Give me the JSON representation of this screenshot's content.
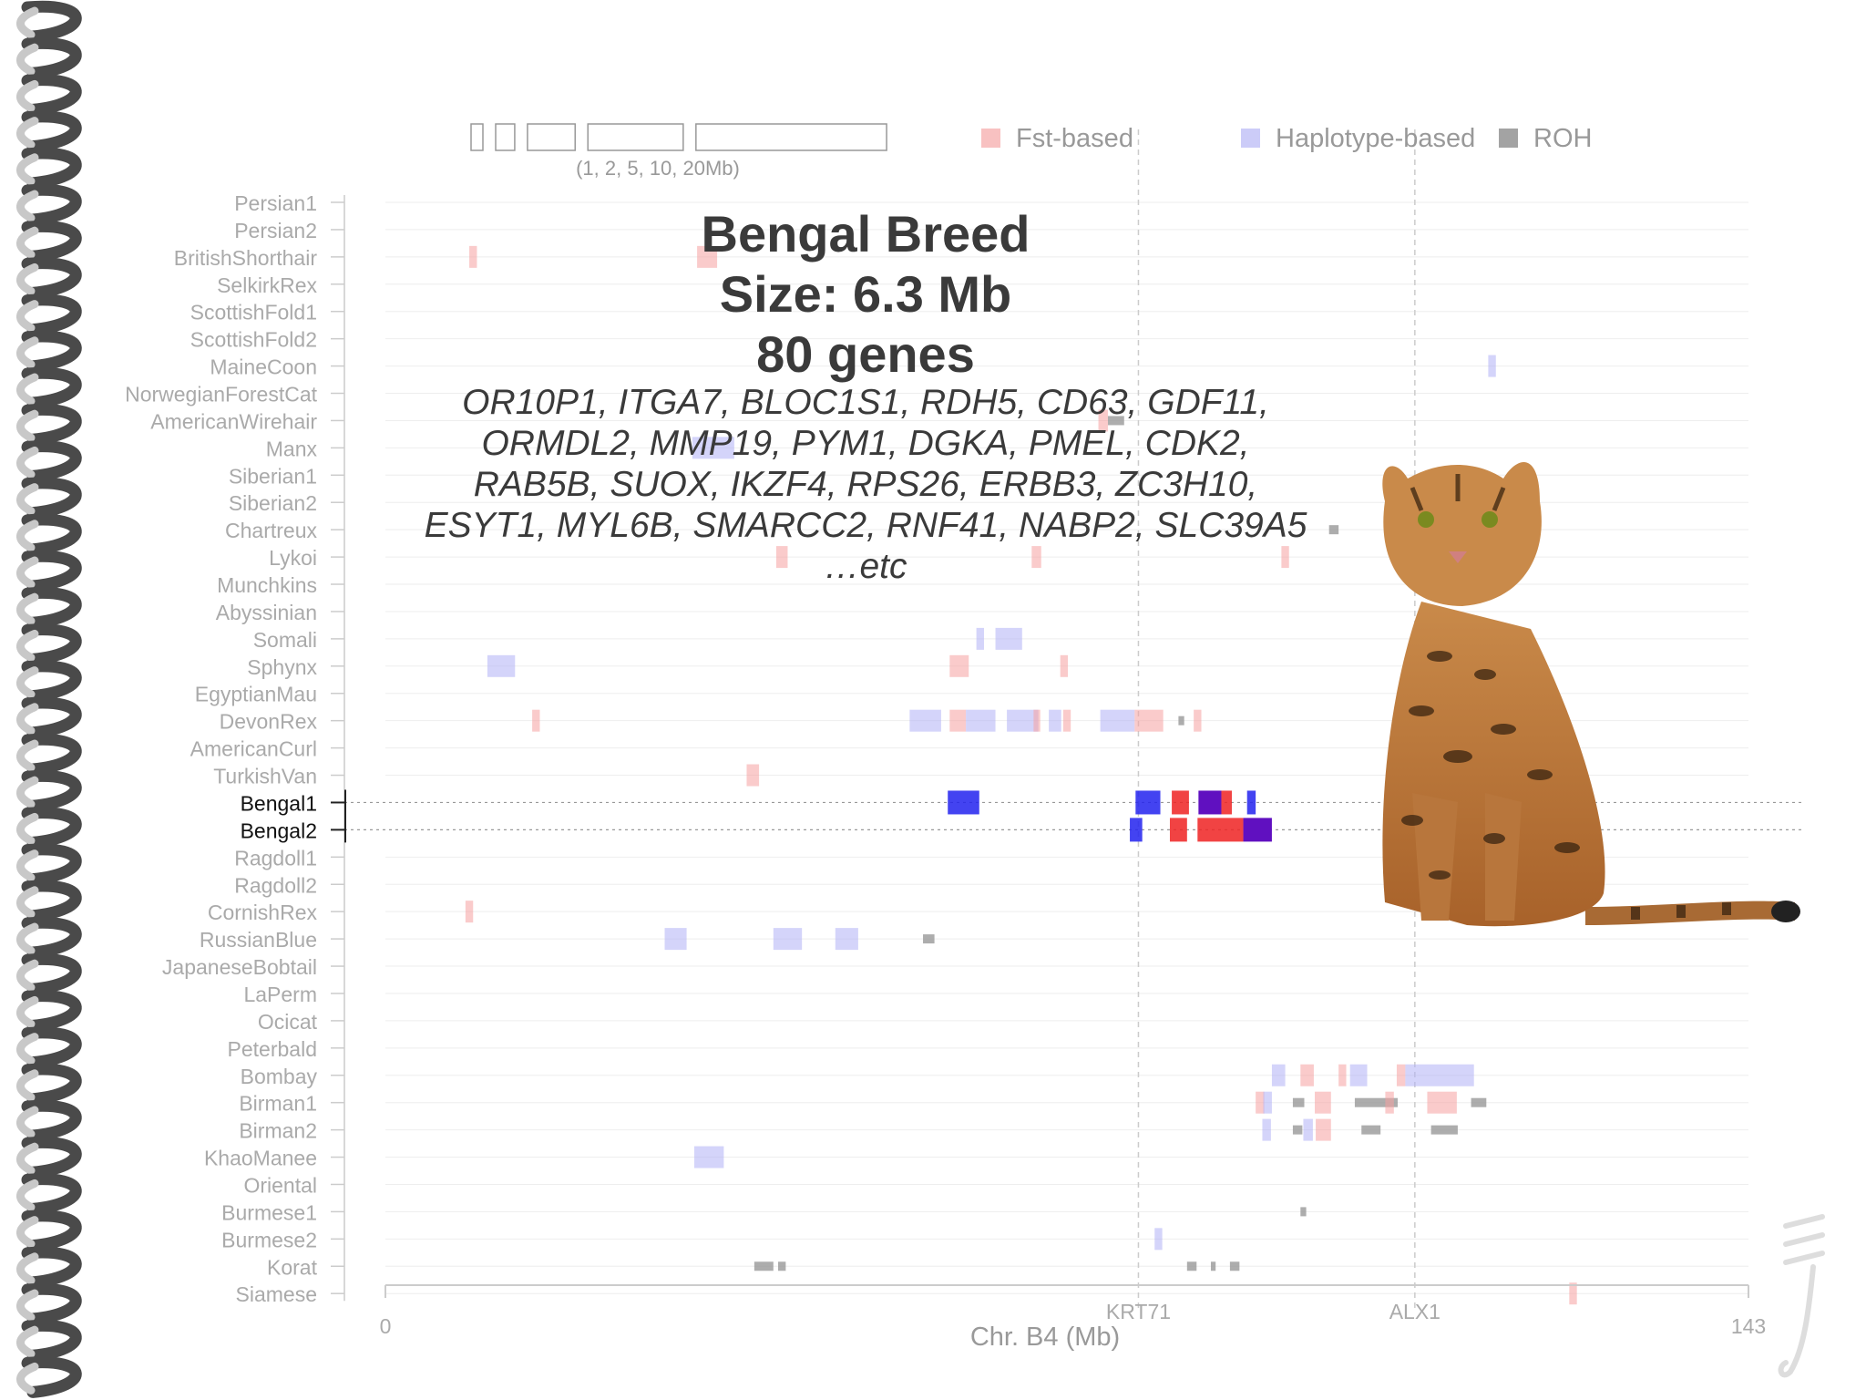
{
  "chart_data": {
    "type": "genome-track",
    "chromosome_label": "Chr. B4 (Mb)",
    "xlim": [
      0,
      143
    ],
    "x_ticks": [
      "0",
      "143"
    ],
    "markers": [
      {
        "name": "KRT71",
        "pos": 79
      },
      {
        "name": "ALX1",
        "pos": 108
      }
    ],
    "scale_bar_label": "(1, 2, 5, 10, 20Mb)",
    "scale_bar_sizes": [
      1,
      2,
      5,
      10,
      20
    ],
    "legend": [
      {
        "label": "Fst-based",
        "color": "#f5a0a0"
      },
      {
        "label": "Haplotype-based",
        "color": "#b0b0f5"
      },
      {
        "label": "ROH",
        "color": "#999999"
      }
    ],
    "highlight_color_fst": "#ee2222",
    "highlight_color_hap": "#2222ee",
    "highlight_color_overlap": "#6010c0",
    "highlight_breeds": [
      "Bengal1",
      "Bengal2"
    ],
    "breeds": [
      "Persian1",
      "Persian2",
      "BritishShorthair",
      "SelkirkRex",
      "ScottishFold1",
      "ScottishFold2",
      "MaineCoon",
      "NorwegianForestCat",
      "AmericanWirehair",
      "Manx",
      "Siberian1",
      "Siberian2",
      "Chartreux",
      "Lykoi",
      "Munchkins",
      "Abyssinian",
      "Somali",
      "Sphynx",
      "EgyptianMau",
      "DevonRex",
      "AmericanCurl",
      "TurkishVan",
      "Bengal1",
      "Bengal2",
      "Ragdoll1",
      "Ragdoll2",
      "CornishRex",
      "RussianBlue",
      "JapaneseBobtail",
      "LaPerm",
      "Ocicat",
      "Peterbald",
      "Bombay",
      "Birman1",
      "Birman2",
      "KhaoManee",
      "Oriental",
      "Burmese1",
      "Burmese2",
      "Korat",
      "Siamese"
    ],
    "regions": [
      {
        "breed": "BritishShorthair",
        "type": "fst",
        "start": 8.8,
        "end": 9.6
      },
      {
        "breed": "BritishShorthair",
        "type": "fst",
        "start": 32.7,
        "end": 34.8
      },
      {
        "breed": "MaineCoon",
        "type": "hap",
        "start": 115.7,
        "end": 116.5
      },
      {
        "breed": "AmericanWirehair",
        "type": "fst",
        "start": 74.8,
        "end": 75.8
      },
      {
        "breed": "AmericanWirehair",
        "type": "roh",
        "start": 75.8,
        "end": 77.5
      },
      {
        "breed": "Manx",
        "type": "hap",
        "start": 32.2,
        "end": 36.6
      },
      {
        "breed": "Chartreux",
        "type": "roh",
        "start": 99.0,
        "end": 100.0
      },
      {
        "breed": "Lykoi",
        "type": "fst",
        "start": 41.0,
        "end": 42.2
      },
      {
        "breed": "Lykoi",
        "type": "fst",
        "start": 67.8,
        "end": 68.8
      },
      {
        "breed": "Lykoi",
        "type": "fst",
        "start": 94.0,
        "end": 94.8
      },
      {
        "breed": "Somali",
        "type": "hap",
        "start": 62.0,
        "end": 62.8
      },
      {
        "breed": "Somali",
        "type": "hap",
        "start": 64.0,
        "end": 66.8
      },
      {
        "breed": "Sphynx",
        "type": "hap",
        "start": 10.7,
        "end": 13.6
      },
      {
        "breed": "Sphynx",
        "type": "fst",
        "start": 59.2,
        "end": 61.2
      },
      {
        "breed": "Sphynx",
        "type": "fst",
        "start": 70.8,
        "end": 71.6
      },
      {
        "breed": "DevonRex",
        "type": "fst",
        "start": 15.4,
        "end": 16.2
      },
      {
        "breed": "DevonRex",
        "type": "hap",
        "start": 55.0,
        "end": 58.3
      },
      {
        "breed": "DevonRex",
        "type": "fst",
        "start": 59.2,
        "end": 60.9
      },
      {
        "breed": "DevonRex",
        "type": "hap",
        "start": 60.9,
        "end": 64.0
      },
      {
        "breed": "DevonRex",
        "type": "hap",
        "start": 65.2,
        "end": 68.5
      },
      {
        "breed": "DevonRex",
        "type": "fst",
        "start": 68.0,
        "end": 68.7
      },
      {
        "breed": "DevonRex",
        "type": "hap",
        "start": 69.6,
        "end": 70.9
      },
      {
        "breed": "DevonRex",
        "type": "fst",
        "start": 71.1,
        "end": 71.9
      },
      {
        "breed": "DevonRex",
        "type": "hap",
        "start": 75.0,
        "end": 78.6
      },
      {
        "breed": "DevonRex",
        "type": "fst",
        "start": 78.6,
        "end": 81.6
      },
      {
        "breed": "DevonRex",
        "type": "roh",
        "start": 83.2,
        "end": 83.8
      },
      {
        "breed": "DevonRex",
        "type": "fst",
        "start": 84.8,
        "end": 85.6
      },
      {
        "breed": "TurkishVan",
        "type": "fst",
        "start": 37.9,
        "end": 39.2
      },
      {
        "breed": "Bengal1",
        "type": "hap",
        "start": 59.0,
        "end": 62.3
      },
      {
        "breed": "Bengal1",
        "type": "hap",
        "start": 78.7,
        "end": 81.3
      },
      {
        "breed": "Bengal1",
        "type": "fst",
        "start": 82.5,
        "end": 84.3
      },
      {
        "breed": "Bengal1",
        "type": "overlap",
        "start": 85.3,
        "end": 87.7
      },
      {
        "breed": "Bengal1",
        "type": "fst",
        "start": 87.7,
        "end": 88.8
      },
      {
        "breed": "Bengal1",
        "type": "hap",
        "start": 90.4,
        "end": 91.3
      },
      {
        "breed": "Bengal2",
        "type": "hap",
        "start": 78.1,
        "end": 79.4
      },
      {
        "breed": "Bengal2",
        "type": "fst",
        "start": 82.3,
        "end": 84.1
      },
      {
        "breed": "Bengal2",
        "type": "fst",
        "start": 85.2,
        "end": 90.0
      },
      {
        "breed": "Bengal2",
        "type": "overlap",
        "start": 90.0,
        "end": 93.0
      },
      {
        "breed": "CornishRex",
        "type": "fst",
        "start": 8.4,
        "end": 9.2
      },
      {
        "breed": "RussianBlue",
        "type": "hap",
        "start": 29.3,
        "end": 31.6
      },
      {
        "breed": "RussianBlue",
        "type": "hap",
        "start": 40.7,
        "end": 43.7
      },
      {
        "breed": "RussianBlue",
        "type": "hap",
        "start": 47.2,
        "end": 49.6
      },
      {
        "breed": "RussianBlue",
        "type": "roh",
        "start": 56.4,
        "end": 57.6
      },
      {
        "breed": "Bombay",
        "type": "hap",
        "start": 93.0,
        "end": 94.4
      },
      {
        "breed": "Bombay",
        "type": "fst",
        "start": 96.0,
        "end": 97.4
      },
      {
        "breed": "Bombay",
        "type": "fst",
        "start": 100.0,
        "end": 100.8
      },
      {
        "breed": "Bombay",
        "type": "hap",
        "start": 101.2,
        "end": 103.0
      },
      {
        "breed": "Bombay",
        "type": "fst",
        "start": 106.1,
        "end": 107.0
      },
      {
        "breed": "Bombay",
        "type": "hap",
        "start": 107.0,
        "end": 114.2
      },
      {
        "breed": "Birman1",
        "type": "fst",
        "start": 91.3,
        "end": 92.2
      },
      {
        "breed": "Birman1",
        "type": "hap",
        "start": 92.1,
        "end": 93.0
      },
      {
        "breed": "Birman1",
        "type": "roh",
        "start": 95.2,
        "end": 96.4
      },
      {
        "breed": "Birman1",
        "type": "fst",
        "start": 97.5,
        "end": 99.2
      },
      {
        "breed": "Birman1",
        "type": "roh",
        "start": 101.7,
        "end": 106.2
      },
      {
        "breed": "Birman1",
        "type": "fst",
        "start": 104.9,
        "end": 105.8
      },
      {
        "breed": "Birman1",
        "type": "fst",
        "start": 109.3,
        "end": 112.4
      },
      {
        "breed": "Birman1",
        "type": "roh",
        "start": 113.9,
        "end": 115.5
      },
      {
        "breed": "Birman2",
        "type": "hap",
        "start": 92.0,
        "end": 92.9
      },
      {
        "breed": "Birman2",
        "type": "roh",
        "start": 95.2,
        "end": 96.2
      },
      {
        "breed": "Birman2",
        "type": "hap",
        "start": 96.3,
        "end": 97.3
      },
      {
        "breed": "Birman2",
        "type": "fst",
        "start": 97.6,
        "end": 99.2
      },
      {
        "breed": "Birman2",
        "type": "roh",
        "start": 102.4,
        "end": 104.4
      },
      {
        "breed": "Birman2",
        "type": "roh",
        "start": 109.7,
        "end": 112.5
      },
      {
        "breed": "KhaoManee",
        "type": "hap",
        "start": 32.4,
        "end": 35.5
      },
      {
        "breed": "Burmese1",
        "type": "roh",
        "start": 96.0,
        "end": 96.6
      },
      {
        "breed": "Burmese2",
        "type": "hap",
        "start": 80.7,
        "end": 81.5
      },
      {
        "breed": "Korat",
        "type": "roh",
        "start": 38.7,
        "end": 40.7
      },
      {
        "breed": "Korat",
        "type": "roh",
        "start": 41.2,
        "end": 42.0
      },
      {
        "breed": "Korat",
        "type": "roh",
        "start": 84.1,
        "end": 85.1
      },
      {
        "breed": "Korat",
        "type": "roh",
        "start": 86.6,
        "end": 87.1
      },
      {
        "breed": "Korat",
        "type": "roh",
        "start": 88.6,
        "end": 89.6
      },
      {
        "breed": "Siamese",
        "type": "fst",
        "start": 124.2,
        "end": 125.0
      }
    ]
  },
  "overlay": {
    "title": "Bengal Breed",
    "size": "Size: 6.3 Mb",
    "genes_count": "80 genes",
    "gene_lines": [
      "OR10P1, ITGA7, BLOC1S1, RDH5, CD63, GDF11,",
      "ORMDL2, MMP19, PYM1, DGKA, PMEL, CDK2,",
      "RAB5B, SUOX, IKZF4, RPS26, ERBB3, ZC3H10,",
      "ESYT1, MYL6B, SMARCC2, RNF41, NABP2, SLC39A5",
      "…etc"
    ]
  },
  "decorations": {
    "cat_photo": "bengal-cat",
    "spiral_binding": "spiral-binding",
    "watermark_logo": "logo-watermark"
  }
}
